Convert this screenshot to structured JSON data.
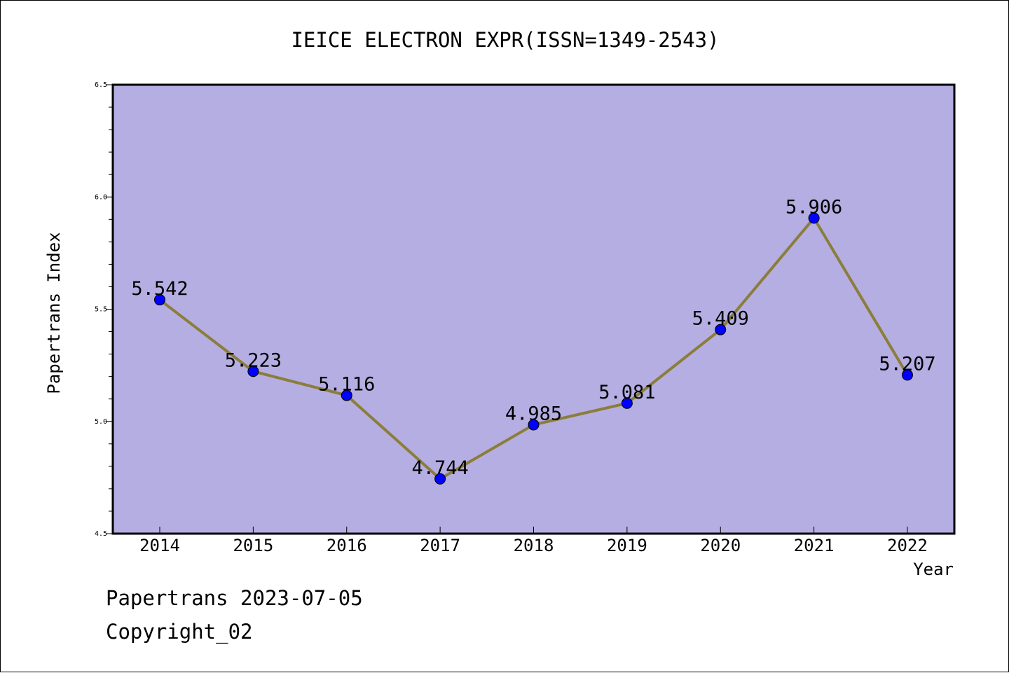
{
  "chart_data": {
    "type": "line",
    "title": "IEICE ELECTRON EXPR(ISSN=1349-2543)",
    "xlabel": "Year",
    "ylabel": "Papertrans Index",
    "categories": [
      "2014",
      "2015",
      "2016",
      "2017",
      "2018",
      "2019",
      "2020",
      "2021",
      "2022"
    ],
    "series": [
      {
        "values": [
          5.542,
          5.223,
          5.116,
          4.744,
          4.985,
          5.081,
          5.409,
          5.906,
          5.207
        ]
      }
    ],
    "data_labels": [
      "5.542",
      "5.223",
      "5.116",
      "4.744",
      "4.985",
      "5.081",
      "5.409",
      "5.906",
      "5.207"
    ],
    "ylim": [
      4.5,
      6.5
    ],
    "yticks": [
      4.5,
      5.0,
      5.5,
      6.0,
      6.5
    ],
    "ytick_labels": [
      "4.5",
      "5.0",
      "5.5",
      "6.0",
      "6.5"
    ],
    "grid": false,
    "colors": {
      "plot_background": "#b4aee2",
      "line": "#8b7d3a",
      "marker": "#0000ff"
    }
  },
  "footer": {
    "line1": "Papertrans 2023-07-05",
    "line2": "Copyright_02"
  }
}
